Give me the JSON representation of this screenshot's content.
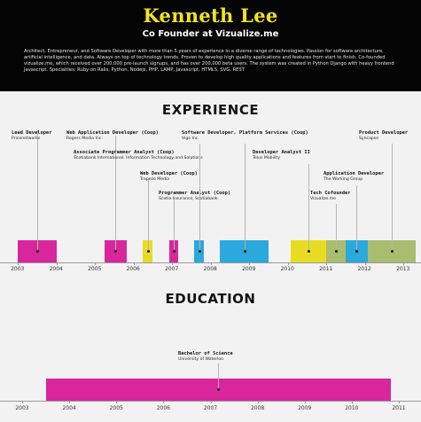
{
  "profile": {
    "name": "Kenneth Lee",
    "role": "Co Founder at Vizualize.me",
    "bio": "Architect, Entrepreneur, and Software Developer with more than 5 years of experience in a diverse range of technologies. Passion for software architecture, artificial intelligence, and data. Always on top of technology trends. Proven to develop high quality applications and features from start to finish. Co-founded vizualize.me, which received over 200,000 pre-launch signups, and has over 200,000 beta users. The system was created in Python Django with heavy frontend Javascript. Specialties: Ruby on Rails, Python, Nodejs, PHP, LAMP, Javascript, HTML5, SVG, REST"
  },
  "experience": {
    "title": "EXPERIENCE",
    "years": [
      "2003",
      "2004",
      "2005",
      "2006",
      "2007",
      "2008",
      "2009",
      "2010",
      "2011",
      "2012",
      "2013"
    ],
    "positions": [
      {
        "title": "Lead Developer",
        "company": "Pricenetworks",
        "start": 2003.0,
        "end": 2004.0,
        "color": "#d9269d"
      },
      {
        "title": "Web Application Developer (Coop)",
        "company": "Rogers Media Inc.",
        "start": 2005.25,
        "end": 2005.83,
        "color": "#d9269d"
      },
      {
        "title": "Associate Programmer Analyst (Coop)",
        "company": "Scotiabank International, Information Technology and Solutions",
        "start": null,
        "end": null,
        "color": ""
      },
      {
        "title": "Web Developer (Coop)",
        "company": "Trapeze Media",
        "start": 2006.25,
        "end": 2006.5,
        "color": "#e8dc22"
      },
      {
        "title": "Programmer Analyst (Coop)",
        "company": "Scotia Insurance, Scotiabank",
        "start": 2006.92,
        "end": 2007.17,
        "color": "#d9269d"
      },
      {
        "title": "Software Developer, Platform Services (Coop)",
        "company": "Vigo Inc.",
        "start": 2007.58,
        "end": 2007.83,
        "color": "#2ba8dc"
      },
      {
        "title": "Software Developer, Platform Services (Coop)",
        "company": "Vigo Inc.",
        "start": 2008.25,
        "end": 2009.5,
        "color": "#2ba8dc"
      },
      {
        "title": "Developer Analyst II",
        "company": "Telus Mobility",
        "start": 2010.08,
        "end": 2011.0,
        "color": "#e8dc22"
      },
      {
        "title": "Tech Cofounder",
        "company": "Vizualize.me",
        "start": 2011.0,
        "end": 2011.5,
        "color": "#a9bd6e"
      },
      {
        "title": "Application Developer",
        "company": "The Working Group",
        "start": 2011.5,
        "end": 2012.08,
        "color": "#2ba8dc"
      },
      {
        "title": "Product Developer",
        "company": "Syncapse",
        "start": 2012.08,
        "end": 2013.33,
        "color": "#a9bd6e"
      }
    ]
  },
  "education": {
    "title": "EDUCATION",
    "years": [
      "2003",
      "2004",
      "2005",
      "2006",
      "2007",
      "2008",
      "2009",
      "2010",
      "2011"
    ],
    "entries": [
      {
        "title": "Bachelor of Science",
        "school": "University of Waterloo",
        "start": 2003.5,
        "end": 2010.83,
        "color": "#d9269d"
      }
    ]
  }
}
